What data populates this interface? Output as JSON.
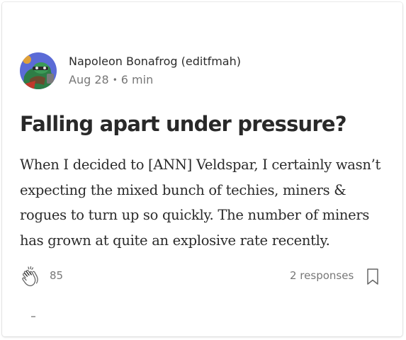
{
  "post": {
    "author": "Napoleon Bonafrog (editfmah)",
    "date": "Aug 28",
    "read_time": "6 min",
    "title": "Falling apart under pressure?",
    "excerpt": "When I decided to [ANN] Veldspar, I certainly wasn’t expecting the mixed bunch of techies, miners & rogues to turn up so quickly. The number of miners has grown at quite an explosive rate recently.",
    "claps": "85",
    "responses": "2 responses"
  },
  "icons": {
    "avatar": "frog-avatar",
    "clap": "clap-icon",
    "bookmark": "bookmark-icon"
  },
  "colors": {
    "text": "#1f1f1f",
    "muted": "#757575",
    "avatar_bg": "#5b6bd6"
  }
}
